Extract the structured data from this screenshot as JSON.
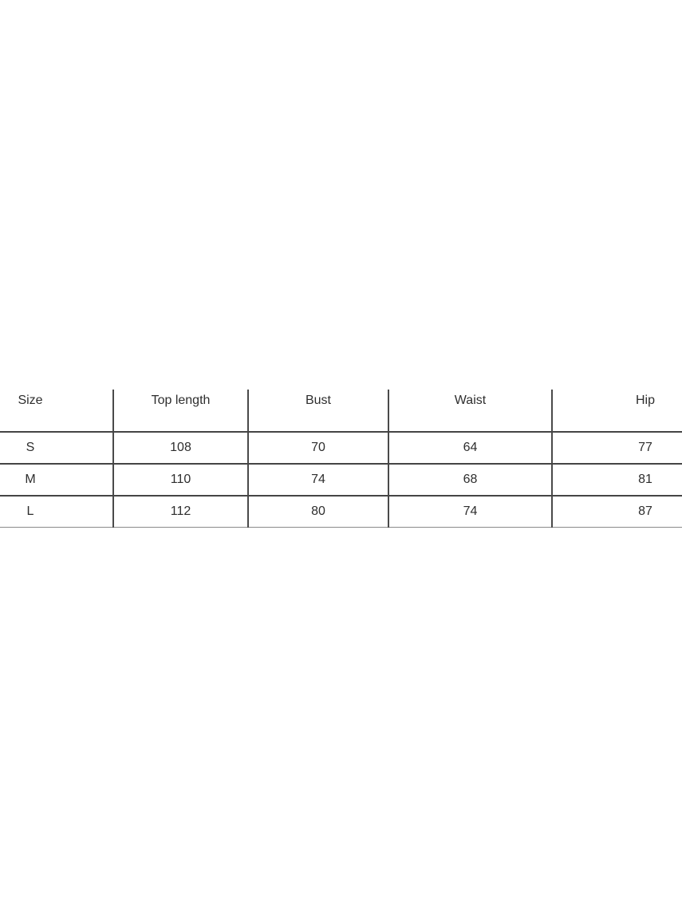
{
  "size_table": {
    "columns": [
      "Size",
      "Top length",
      "Bust",
      "Waist",
      "Hip"
    ],
    "rows": [
      {
        "size": "S",
        "top_length": "108",
        "bust": "70",
        "waist": "64",
        "hip": "77"
      },
      {
        "size": "M",
        "top_length": "110",
        "bust": "74",
        "waist": "68",
        "hip": "81"
      },
      {
        "size": "L",
        "top_length": "112",
        "bust": "80",
        "waist": "74",
        "hip": "87"
      }
    ],
    "line_color": "#454545",
    "divider_color": "#4a4a4a",
    "bottom_line_color": "#8a8a8a",
    "text_color": "#2e2e2e",
    "background_color": "#ffffff"
  },
  "chart_data": {
    "type": "table",
    "title": "",
    "columns": [
      "Size",
      "Top length",
      "Bust",
      "Waist",
      "Hip"
    ],
    "rows": [
      [
        "S",
        108,
        70,
        64,
        77
      ],
      [
        "M",
        110,
        74,
        68,
        81
      ],
      [
        "L",
        112,
        80,
        74,
        87
      ]
    ]
  }
}
